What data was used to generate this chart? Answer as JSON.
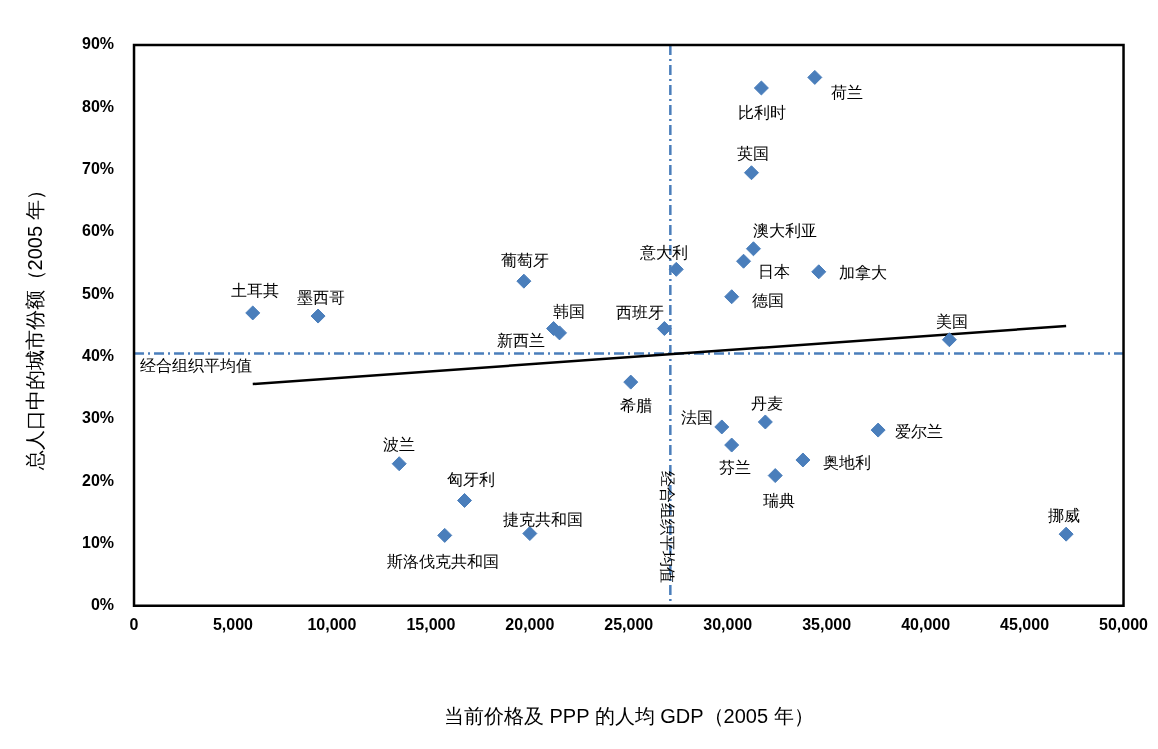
{
  "chart_data": {
    "type": "scatter",
    "xlabel": "当前价格及 PPP 的人均 GDP（2005 年）",
    "ylabel": "总人口中的城市份额（2005 年）",
    "xlim": [
      0,
      50000
    ],
    "ylim": [
      0,
      90
    ],
    "xticks": [
      {
        "value": 0,
        "label": "0"
      },
      {
        "value": 5000,
        "label": "5,000"
      },
      {
        "value": 10000,
        "label": "10,000"
      },
      {
        "value": 15000,
        "label": "15,000"
      },
      {
        "value": 20000,
        "label": "20,000"
      },
      {
        "value": 25000,
        "label": "25,000"
      },
      {
        "value": 30000,
        "label": "30,000"
      },
      {
        "value": 35000,
        "label": "35,000"
      },
      {
        "value": 40000,
        "label": "40,000"
      },
      {
        "value": 45000,
        "label": "45,000"
      },
      {
        "value": 50000,
        "label": "50,000"
      }
    ],
    "yticks": [
      {
        "value": 0,
        "label": "0%"
      },
      {
        "value": 10,
        "label": "10%"
      },
      {
        "value": 20,
        "label": "20%"
      },
      {
        "value": 30,
        "label": "30%"
      },
      {
        "value": 40,
        "label": "40%"
      },
      {
        "value": 50,
        "label": "50%"
      },
      {
        "value": 60,
        "label": "60%"
      },
      {
        "value": 70,
        "label": "70%"
      },
      {
        "value": 80,
        "label": "80%"
      },
      {
        "value": 90,
        "label": "90%"
      }
    ],
    "grid": false,
    "legend": false,
    "marker": "diamond",
    "series": [
      {
        "type": "scatter",
        "color": "#4a7ebb",
        "x": [
          6000,
          9300,
          19700,
          21200,
          21500,
          26800,
          25100,
          27400,
          31700,
          34400,
          31200,
          31300,
          30800,
          34600,
          30200,
          41200,
          29700,
          30200,
          31900,
          37600,
          33800,
          32400,
          47100,
          13400,
          16700,
          20000,
          15700
        ],
        "values": [
          47.0,
          46.5,
          52.1,
          44.5,
          43.8,
          44.5,
          35.9,
          54.0,
          83.1,
          84.8,
          69.5,
          57.3,
          55.3,
          53.6,
          49.6,
          42.7,
          28.7,
          25.8,
          29.5,
          28.2,
          23.4,
          20.9,
          11.5,
          22.8,
          16.9,
          11.6,
          11.3
        ]
      },
      {
        "type": "line",
        "marker": "none",
        "color": "#000000",
        "x": [
          6000,
          47100
        ],
        "values": [
          35.6,
          44.9
        ]
      }
    ],
    "annotations": [
      {
        "text": "土耳其",
        "x": 6000,
        "y": 47.0
      },
      {
        "text": "墨西哥",
        "x": 9300,
        "y": 46.5
      },
      {
        "text": "葡萄牙",
        "x": 19700,
        "y": 52.1
      },
      {
        "text": "韩国",
        "x": 21200,
        "y": 44.5
      },
      {
        "text": "新西兰",
        "x": 21500,
        "y": 43.8
      },
      {
        "text": "西班牙",
        "x": 26800,
        "y": 44.5
      },
      {
        "text": "希腊",
        "x": 25100,
        "y": 35.9
      },
      {
        "text": "意大利",
        "x": 27400,
        "y": 54.0
      },
      {
        "text": "比利时",
        "x": 31700,
        "y": 83.1
      },
      {
        "text": "荷兰",
        "x": 34400,
        "y": 84.8
      },
      {
        "text": "英国",
        "x": 31200,
        "y": 69.5
      },
      {
        "text": "澳大利亚",
        "x": 31300,
        "y": 57.3
      },
      {
        "text": "日本",
        "x": 30800,
        "y": 55.3
      },
      {
        "text": "加拿大",
        "x": 34600,
        "y": 53.6
      },
      {
        "text": "德国",
        "x": 30200,
        "y": 49.6
      },
      {
        "text": "美国",
        "x": 41200,
        "y": 42.7
      },
      {
        "text": "法国",
        "x": 29700,
        "y": 28.7
      },
      {
        "text": "芬兰",
        "x": 30200,
        "y": 25.8
      },
      {
        "text": "丹麦",
        "x": 31900,
        "y": 29.5
      },
      {
        "text": "爱尔兰",
        "x": 37600,
        "y": 28.2
      },
      {
        "text": "奥地利",
        "x": 33800,
        "y": 23.4
      },
      {
        "text": "瑞典",
        "x": 32400,
        "y": 20.9
      },
      {
        "text": "挪威",
        "x": 47100,
        "y": 11.5
      },
      {
        "text": "波兰",
        "x": 13400,
        "y": 22.8
      },
      {
        "text": "匈牙利",
        "x": 16700,
        "y": 16.9
      },
      {
        "text": "捷克共和国",
        "x": 20000,
        "y": 11.6
      },
      {
        "text": "斯洛伐克共和国",
        "x": 15700,
        "y": 11.3
      }
    ],
    "ref_lines": [
      {
        "axis": "y",
        "value": 40.5,
        "label": "经合组织平均值",
        "color": "#4a7ebb",
        "line_style": "dashdot"
      },
      {
        "axis": "x",
        "value": 27100,
        "label": "经合组织平均值",
        "color": "#4a7ebb",
        "line_style": "dashdot"
      }
    ]
  }
}
